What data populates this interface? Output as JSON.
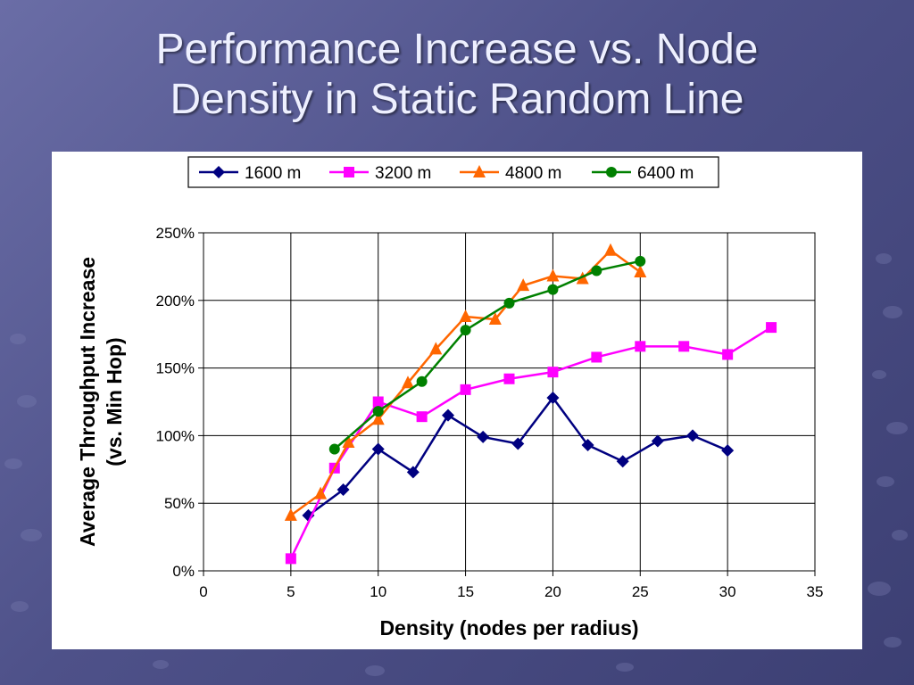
{
  "slide": {
    "title_line1": "Performance Increase vs. Node",
    "title_line2": "Density in Static Random Line"
  },
  "chart_data": {
    "type": "line",
    "title": "",
    "xlabel": "Density (nodes per radius)",
    "ylabel_line1": "Average Throughput Increase",
    "ylabel_line2": "(vs. Min Hop)",
    "xlim": [
      0,
      35
    ],
    "ylim": [
      0,
      250
    ],
    "x_ticks": [
      0,
      5,
      10,
      15,
      20,
      25,
      30,
      35
    ],
    "y_ticks": [
      0,
      50,
      100,
      150,
      200,
      250
    ],
    "y_tick_labels": [
      "0%",
      "50%",
      "100%",
      "150%",
      "200%",
      "250%"
    ],
    "grid": true,
    "legend_position": "top",
    "series": [
      {
        "name": "1600 m",
        "color": "#000080",
        "marker": "diamond",
        "x": [
          6,
          8,
          10,
          12,
          14,
          16,
          18,
          20,
          22,
          24,
          26,
          28,
          30
        ],
        "y": [
          41,
          60,
          90,
          73,
          115,
          99,
          94,
          128,
          93,
          81,
          96,
          100,
          89
        ]
      },
      {
        "name": "3200 m",
        "color": "#ff00ff",
        "marker": "square",
        "x": [
          5,
          7.5,
          10,
          12.5,
          15,
          17.5,
          20,
          22.5,
          25,
          27.5,
          30,
          32.5
        ],
        "y": [
          9,
          76,
          125,
          114,
          134,
          142,
          147,
          158,
          166,
          166,
          160,
          180
        ]
      },
      {
        "name": "4800 m",
        "color": "#ff6600",
        "marker": "triangle",
        "x": [
          5,
          6.7,
          8.3,
          10,
          11.7,
          13.3,
          15,
          16.7,
          18.3,
          20,
          21.7,
          23.3,
          25
        ],
        "y": [
          41,
          57,
          95,
          112,
          139,
          164,
          188,
          186,
          211,
          218,
          216,
          237,
          221
        ]
      },
      {
        "name": "6400 m",
        "color": "#008000",
        "marker": "circle",
        "x": [
          7.5,
          10,
          12.5,
          15,
          17.5,
          20,
          22.5,
          25
        ],
        "y": [
          90,
          118,
          140,
          178,
          198,
          208,
          222,
          229
        ]
      }
    ]
  }
}
